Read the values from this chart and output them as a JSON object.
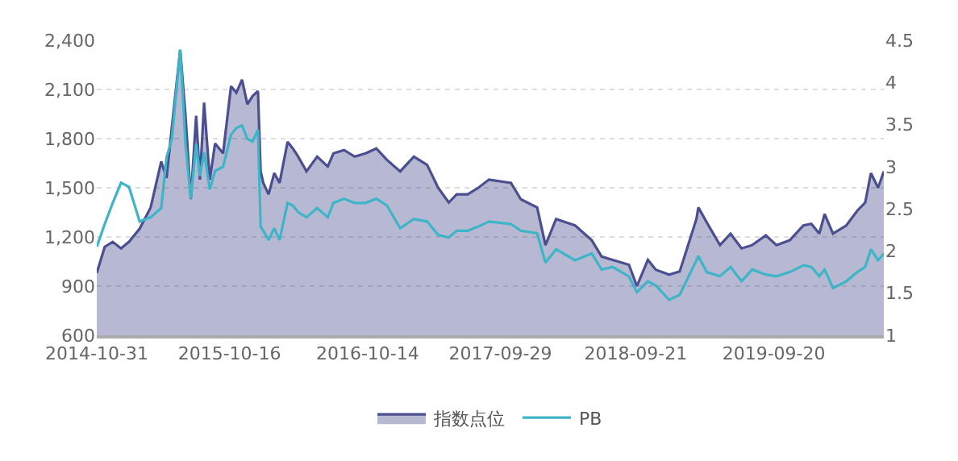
{
  "chart_data": {
    "type": "area",
    "x": [
      "2014-10-31",
      "2014-11-21",
      "2014-12-12",
      "2015-01-03",
      "2015-01-24",
      "2015-02-21",
      "2015-03-22",
      "2015-04-19",
      "2015-05-03",
      "2015-05-17",
      "2015-06-08",
      "2015-06-22",
      "2015-07-06",
      "2015-07-20",
      "2015-07-30",
      "2015-08-10",
      "2015-08-25",
      "2015-09-08",
      "2015-09-29",
      "2015-10-20",
      "2015-11-03",
      "2015-11-18",
      "2015-12-02",
      "2015-12-16",
      "2015-12-30",
      "2016-01-06",
      "2016-01-13",
      "2016-01-27",
      "2016-02-11",
      "2016-02-25",
      "2016-03-17",
      "2016-03-31",
      "2016-04-14",
      "2016-05-06",
      "2016-06-03",
      "2016-07-01",
      "2016-07-16",
      "2016-08-13",
      "2016-09-10",
      "2016-10-09",
      "2016-11-06",
      "2016-12-04",
      "2017-01-08",
      "2017-02-13",
      "2017-03-20",
      "2017-04-18",
      "2017-05-16",
      "2017-06-06",
      "2017-07-05",
      "2017-08-02",
      "2017-08-30",
      "2017-10-27",
      "2017-11-22",
      "2018-01-04",
      "2018-01-26",
      "2018-02-23",
      "2018-04-14",
      "2018-05-28",
      "2018-06-23",
      "2018-07-22",
      "2018-09-03",
      "2018-09-24",
      "2018-10-23",
      "2018-11-13",
      "2018-12-18",
      "2019-01-15",
      "2019-02-28",
      "2019-03-05",
      "2019-03-27",
      "2019-05-01",
      "2019-05-29",
      "2019-06-27",
      "2019-07-25",
      "2019-08-30",
      "2019-09-27",
      "2019-11-01",
      "2019-12-07",
      "2019-12-28",
      "2020-01-18",
      "2020-02-01",
      "2020-02-23",
      "2020-03-29",
      "2020-04-27",
      "2020-05-18",
      "2020-06-02",
      "2020-06-21",
      "2020-07-06"
    ],
    "series": [
      {
        "name": "指数点位",
        "color": "#4b4f91",
        "values": [
          980,
          1140,
          1170,
          1130,
          1170,
          1250,
          1380,
          1660,
          1560,
          1870,
          2340,
          1940,
          1430,
          1940,
          1550,
          2020,
          1550,
          1770,
          1710,
          2120,
          2080,
          2160,
          2010,
          2060,
          2090,
          1600,
          1530,
          1460,
          1590,
          1530,
          1780,
          1740,
          1690,
          1600,
          1690,
          1630,
          1710,
          1730,
          1690,
          1710,
          1740,
          1670,
          1600,
          1690,
          1640,
          1500,
          1410,
          1460,
          1460,
          1500,
          1550,
          1530,
          1430,
          1380,
          1150,
          1310,
          1270,
          1180,
          1080,
          1060,
          1030,
          900,
          1060,
          1000,
          970,
          990,
          1310,
          1380,
          1290,
          1150,
          1220,
          1130,
          1150,
          1210,
          1150,
          1180,
          1270,
          1280,
          1220,
          1340,
          1220,
          1270,
          1360,
          1410,
          1590,
          1500,
          1600
        ]
      },
      {
        "name": "PB",
        "type": "line",
        "axis": "y2",
        "color": "#3db4c8",
        "values": [
          2.05,
          2.32,
          2.57,
          2.81,
          2.76,
          2.35,
          2.4,
          2.51,
          3.11,
          3.33,
          4.39,
          3.27,
          2.62,
          3.27,
          2.89,
          3.17,
          2.73,
          2.95,
          3.0,
          3.38,
          3.46,
          3.49,
          3.33,
          3.3,
          3.44,
          2.29,
          2.24,
          2.13,
          2.27,
          2.13,
          2.57,
          2.54,
          2.46,
          2.4,
          2.51,
          2.4,
          2.57,
          2.62,
          2.57,
          2.57,
          2.62,
          2.54,
          2.27,
          2.38,
          2.35,
          2.19,
          2.16,
          2.24,
          2.24,
          2.29,
          2.35,
          2.32,
          2.24,
          2.21,
          1.86,
          2.02,
          1.89,
          1.97,
          1.78,
          1.81,
          1.7,
          1.51,
          1.64,
          1.59,
          1.42,
          1.48,
          1.89,
          1.94,
          1.75,
          1.7,
          1.81,
          1.64,
          1.78,
          1.72,
          1.7,
          1.75,
          1.83,
          1.81,
          1.7,
          1.78,
          1.56,
          1.64,
          1.75,
          1.81,
          2.02,
          1.89,
          1.97
        ]
      }
    ],
    "xlim": [
      "2014-10-31",
      "2020-07-06"
    ],
    "xticks": [
      {
        "value": "2014-10-31",
        "label": "2014-10-31"
      },
      {
        "value": "2015-10-16",
        "label": "2015-10-16"
      },
      {
        "value": "2016-10-14",
        "label": "2016-10-14"
      },
      {
        "value": "2017-09-29",
        "label": "2017-09-29"
      },
      {
        "value": "2018-09-21",
        "label": "2018-09-21"
      },
      {
        "value": "2019-09-20",
        "label": "2019-09-20"
      }
    ],
    "ylim": [
      600,
      2400
    ],
    "yticks": [
      600,
      900,
      {
        "value": 1200,
        "label": "1,200"
      },
      {
        "value": 1500,
        "label": "1,500"
      },
      {
        "value": 1800,
        "label": "1,800"
      },
      {
        "value": 2100,
        "label": "2,100"
      },
      {
        "value": 2400,
        "label": "2,400"
      }
    ],
    "y2lim": [
      1,
      4.5
    ],
    "y2ticks": [
      1,
      1.5,
      2,
      2.5,
      3,
      3.5,
      4,
      4.5
    ],
    "grid": "y",
    "legend": "bottom",
    "marker": "none",
    "line_style": "solid"
  }
}
